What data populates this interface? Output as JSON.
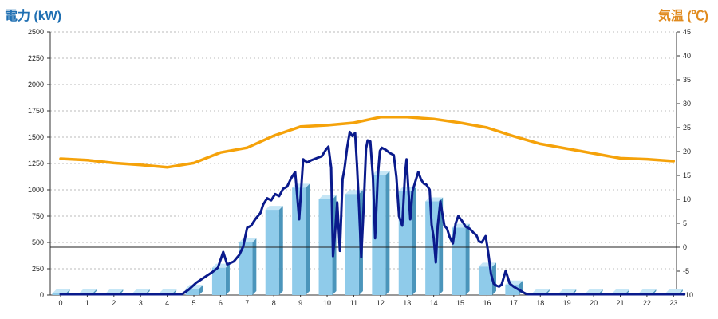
{
  "chart_data": {
    "type": "bar",
    "left_axis_label": "電力 (kW)",
    "right_axis_label": "気温 (℃)",
    "colors": {
      "bar_front": "#8fcbea",
      "bar_side": "#4b95bb",
      "bar_top": "#c5e6f6",
      "power_line": "#0a1a8c",
      "temp_line": "#f5a20a",
      "left_label": "#1f6fb2",
      "right_label": "#e08a1e",
      "grid": "#bbbbbb",
      "zero_line": "#222222"
    },
    "ylim_left": [
      0,
      2500
    ],
    "yticks_left": [
      "0",
      "250",
      "500",
      "750",
      "1000",
      "1250",
      "1500",
      "1750",
      "2000",
      "2250",
      "2500"
    ],
    "ylim_right": [
      -10,
      45
    ],
    "yticks_right": [
      "-10",
      "-5",
      "0",
      "5",
      "10",
      "15",
      "20",
      "25",
      "30",
      "35",
      "40",
      "45"
    ],
    "categories": [
      "0",
      "1",
      "2",
      "3",
      "4",
      "5",
      "6",
      "7",
      "8",
      "9",
      "10",
      "11",
      "12",
      "13",
      "14",
      "15",
      "16",
      "17",
      "18",
      "19",
      "20",
      "21",
      "22",
      "23"
    ],
    "bars": [
      0,
      0,
      0,
      0,
      0,
      60,
      260,
      500,
      810,
      1020,
      910,
      960,
      1140,
      990,
      890,
      640,
      270,
      100,
      0,
      0,
      0,
      0,
      0,
      0
    ],
    "temperature": [
      [
        0,
        18.5
      ],
      [
        1,
        18.2
      ],
      [
        2,
        17.6
      ],
      [
        3,
        17.2
      ],
      [
        4,
        16.7
      ],
      [
        5,
        17.6
      ],
      [
        6,
        19.8
      ],
      [
        7,
        20.8
      ],
      [
        8,
        23.3
      ],
      [
        9,
        25.2
      ],
      [
        10,
        25.5
      ],
      [
        11,
        26.0
      ],
      [
        12,
        27.2
      ],
      [
        13,
        27.2
      ],
      [
        14,
        26.8
      ],
      [
        15,
        26.0
      ],
      [
        16,
        25.0
      ],
      [
        17,
        23.2
      ],
      [
        18,
        21.6
      ],
      [
        19,
        20.6
      ],
      [
        20,
        19.6
      ],
      [
        21,
        18.6
      ],
      [
        22,
        18.4
      ],
      [
        23,
        18.0
      ]
    ],
    "power_line": [
      [
        0,
        0
      ],
      [
        4.55,
        0
      ],
      [
        4.8,
        50
      ],
      [
        5.1,
        120
      ],
      [
        5.4,
        170
      ],
      [
        5.7,
        220
      ],
      [
        5.9,
        260
      ],
      [
        6.1,
        410
      ],
      [
        6.25,
        290
      ],
      [
        6.5,
        320
      ],
      [
        6.7,
        380
      ],
      [
        6.85,
        460
      ],
      [
        7.0,
        640
      ],
      [
        7.15,
        660
      ],
      [
        7.3,
        720
      ],
      [
        7.5,
        780
      ],
      [
        7.6,
        860
      ],
      [
        7.75,
        920
      ],
      [
        7.9,
        900
      ],
      [
        8.05,
        960
      ],
      [
        8.2,
        940
      ],
      [
        8.35,
        1010
      ],
      [
        8.5,
        1030
      ],
      [
        8.65,
        1110
      ],
      [
        8.8,
        1170
      ],
      [
        8.95,
        720
      ],
      [
        9.1,
        1290
      ],
      [
        9.25,
        1260
      ],
      [
        9.4,
        1280
      ],
      [
        9.6,
        1300
      ],
      [
        9.8,
        1320
      ],
      [
        9.95,
        1380
      ],
      [
        10.05,
        1410
      ],
      [
        10.15,
        1210
      ],
      [
        10.22,
        370
      ],
      [
        10.3,
        600
      ],
      [
        10.38,
        880
      ],
      [
        10.48,
        420
      ],
      [
        10.58,
        1100
      ],
      [
        10.65,
        1200
      ],
      [
        10.75,
        1400
      ],
      [
        10.85,
        1550
      ],
      [
        10.95,
        1510
      ],
      [
        11.05,
        1540
      ],
      [
        11.12,
        1230
      ],
      [
        11.2,
        830
      ],
      [
        11.28,
        360
      ],
      [
        11.38,
        880
      ],
      [
        11.46,
        1390
      ],
      [
        11.52,
        1470
      ],
      [
        11.62,
        1460
      ],
      [
        11.72,
        1110
      ],
      [
        11.8,
        540
      ],
      [
        11.9,
        1120
      ],
      [
        11.98,
        1370
      ],
      [
        12.05,
        1400
      ],
      [
        12.2,
        1380
      ],
      [
        12.35,
        1350
      ],
      [
        12.5,
        1330
      ],
      [
        12.6,
        1120
      ],
      [
        12.7,
        750
      ],
      [
        12.82,
        660
      ],
      [
        12.92,
        1140
      ],
      [
        12.98,
        1290
      ],
      [
        13.05,
        1000
      ],
      [
        13.12,
        720
      ],
      [
        13.2,
        980
      ],
      [
        13.3,
        1070
      ],
      [
        13.42,
        1170
      ],
      [
        13.52,
        1100
      ],
      [
        13.62,
        1060
      ],
      [
        13.72,
        1050
      ],
      [
        13.85,
        1000
      ],
      [
        13.92,
        670
      ],
      [
        14.0,
        540
      ],
      [
        14.08,
        310
      ],
      [
        14.15,
        660
      ],
      [
        14.25,
        890
      ],
      [
        14.32,
        780
      ],
      [
        14.4,
        660
      ],
      [
        14.5,
        630
      ],
      [
        14.6,
        550
      ],
      [
        14.72,
        490
      ],
      [
        14.82,
        680
      ],
      [
        14.92,
        750
      ],
      [
        15.05,
        710
      ],
      [
        15.2,
        650
      ],
      [
        15.35,
        630
      ],
      [
        15.5,
        590
      ],
      [
        15.6,
        570
      ],
      [
        15.7,
        510
      ],
      [
        15.8,
        500
      ],
      [
        15.95,
        560
      ],
      [
        16.05,
        400
      ],
      [
        16.15,
        200
      ],
      [
        16.25,
        110
      ],
      [
        16.35,
        90
      ],
      [
        16.45,
        80
      ],
      [
        16.55,
        100
      ],
      [
        16.7,
        230
      ],
      [
        16.85,
        110
      ],
      [
        17.0,
        80
      ],
      [
        17.2,
        50
      ],
      [
        17.4,
        20
      ],
      [
        17.5,
        0
      ],
      [
        23.4,
        0
      ]
    ]
  }
}
